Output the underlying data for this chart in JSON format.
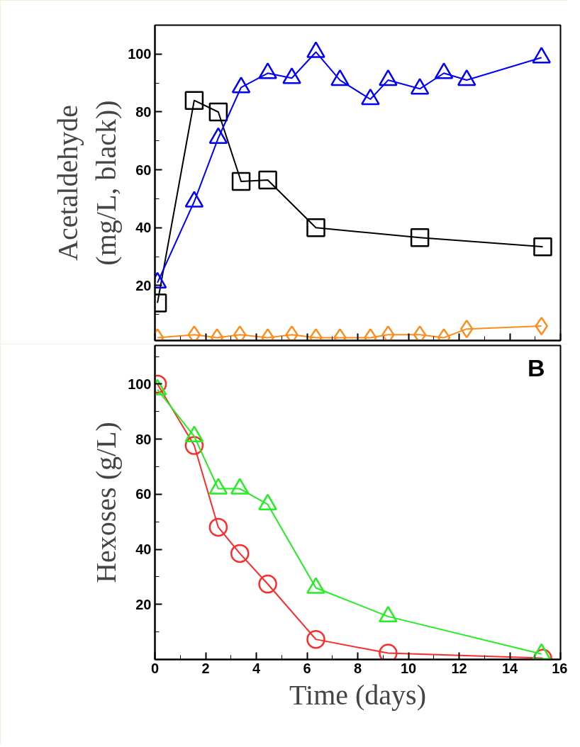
{
  "chart_data": [
    {
      "type": "line",
      "ylabel": "Acetaldehyde\n(mg/L, black))",
      "xlim": [
        0,
        16
      ],
      "xticks": [
        0,
        2,
        4,
        6,
        8,
        10,
        12,
        14,
        16
      ],
      "ylim": [
        1,
        110
      ],
      "yticks": [
        20,
        40,
        60,
        80,
        100
      ],
      "tick_labels": "y",
      "grid": false,
      "line_style": "solid",
      "series": [
        {
          "color": "#000000",
          "marker": "square",
          "x": [
            0.1,
            1.55,
            2.5,
            3.4,
            4.45,
            6.35,
            10.45,
            15.3
          ],
          "values": [
            14,
            84,
            80,
            56,
            56.5,
            40,
            36.6,
            33.4
          ]
        },
        {
          "color": "#0000ff",
          "marker": "triangle",
          "x": [
            0.1,
            1.55,
            2.5,
            3.4,
            4.45,
            5.4,
            6.35,
            7.3,
            8.5,
            9.2,
            10.45,
            11.4,
            12.3,
            15.25
          ],
          "values": [
            21,
            49,
            71,
            88.5,
            93.4,
            91.7,
            100.7,
            91,
            84.4,
            91,
            88,
            93.4,
            91,
            98.8
          ]
        },
        {
          "color": "#ff8c1a",
          "marker": "diamond",
          "x": [
            0.1,
            1.55,
            2.45,
            3.35,
            4.45,
            5.4,
            6.35,
            7.3,
            8.5,
            9.2,
            10.45,
            11.4,
            12.3,
            15.25
          ],
          "values": [
            2,
            3,
            2,
            3,
            2,
            3,
            2,
            2,
            2,
            3,
            3,
            2,
            5,
            6
          ]
        }
      ]
    },
    {
      "type": "line",
      "ylabel": "Hexoses (g/L)",
      "xlabel": "Time (days)",
      "xlim": [
        0,
        16
      ],
      "xticks": [
        0,
        2,
        4,
        6,
        8,
        10,
        12,
        14,
        16
      ],
      "ylim": [
        0,
        114
      ],
      "yticks": [
        20,
        40,
        60,
        80,
        100
      ],
      "grid": false,
      "line_style": "solid",
      "annotations": [
        "B"
      ],
      "series": [
        {
          "color": "#ff2a2a",
          "marker": "circle",
          "x": [
            0.1,
            1.55,
            2.5,
            3.35,
            4.45,
            6.35,
            9.2,
            15.3
          ],
          "values": [
            100,
            77.7,
            48,
            38.5,
            27.4,
            7.3,
            2.3,
            0.5
          ]
        },
        {
          "color": "#22ee22",
          "marker": "triangle",
          "x": [
            0.1,
            1.55,
            2.5,
            3.35,
            4.45,
            6.35,
            9.2,
            15.25
          ],
          "values": [
            98,
            81,
            62,
            62,
            56.3,
            26,
            15.6,
            2
          ]
        }
      ]
    }
  ]
}
